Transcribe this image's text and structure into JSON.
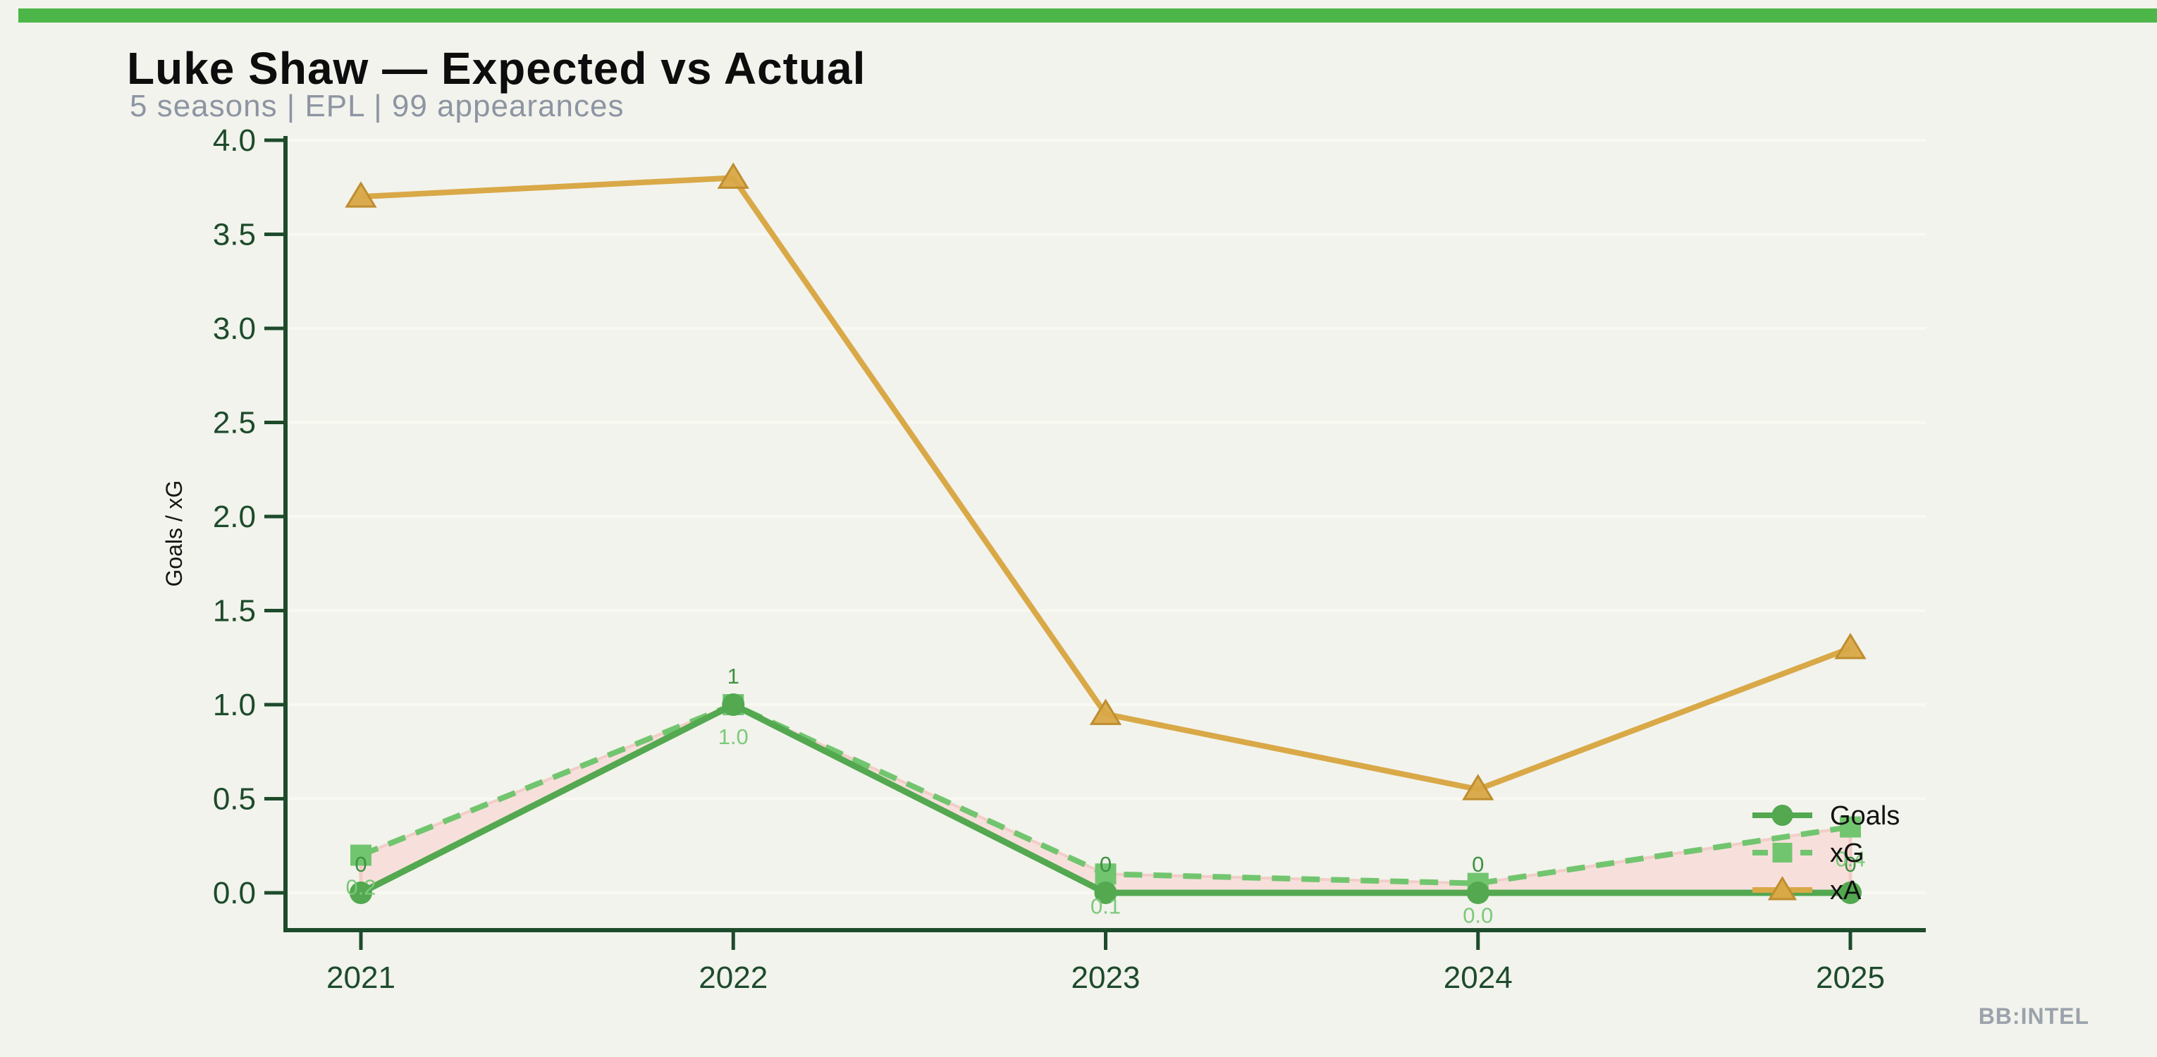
{
  "header": {
    "title": "Luke Shaw — Expected vs Actual",
    "subtitle": "5 seasons | EPL | 99 appearances"
  },
  "footer": {
    "brand": "BB:INTEL"
  },
  "colors": {
    "background": "#F2F3EC",
    "accent_bar": "#4CB648",
    "axis": "#1D4B2C",
    "tick_label": "#1D4B2C",
    "axis_title": "#151515",
    "legend_text": "#111111",
    "gridline": "#F8F9F1",
    "diff_fill": "#F7DEDA",
    "diff_edge": "#F2CDC8",
    "connector": "#F3CBC5"
  },
  "chart_data": {
    "type": "line",
    "title": "Luke Shaw — Expected vs Actual",
    "subtitle": "5 seasons | EPL | 99 appearances",
    "categories": [
      "2021",
      "2022",
      "2023",
      "2024",
      "2025"
    ],
    "xlabel": "",
    "ylabel": "Goals / xG",
    "ylim": [
      0,
      4.0
    ],
    "yticks": [
      0.0,
      0.5,
      1.0,
      1.5,
      2.0,
      2.5,
      3.0,
      3.5,
      4.0
    ],
    "ytick_labels": [
      "0.0",
      "0.5",
      "1.0",
      "1.5",
      "2.0",
      "2.5",
      "3.0",
      "3.5",
      "4.0"
    ],
    "grid": "faint horizontal gridlines only",
    "legend_position": "lower right, no frame",
    "series": [
      {
        "name": "Goals",
        "values": [
          0,
          1,
          0,
          0,
          0
        ],
        "point_labels": [
          "0",
          "1",
          "0",
          "0",
          "0"
        ],
        "color": "#53A850",
        "label_color": "#3F9143",
        "marker": "circle",
        "line_style": "solid"
      },
      {
        "name": "xG",
        "values": [
          0.2,
          1.0,
          0.1,
          0.05,
          0.35
        ],
        "point_labels": [
          "0.2",
          "1.0",
          "0.1",
          "0.0",
          "0.4"
        ],
        "color": "#72C56F",
        "label_color": "#7CC97A",
        "marker": "square",
        "line_style": "dashed"
      },
      {
        "name": "xA",
        "values": [
          3.7,
          3.8,
          0.95,
          0.55,
          1.3
        ],
        "point_labels": [],
        "color": "#D9A847",
        "marker_edge_color": "#BE8D2F",
        "marker": "triangle",
        "line_style": "solid"
      }
    ],
    "fill_between": {
      "series_a": "Goals",
      "series_b": "xG",
      "color": "#F7DEDA"
    }
  }
}
